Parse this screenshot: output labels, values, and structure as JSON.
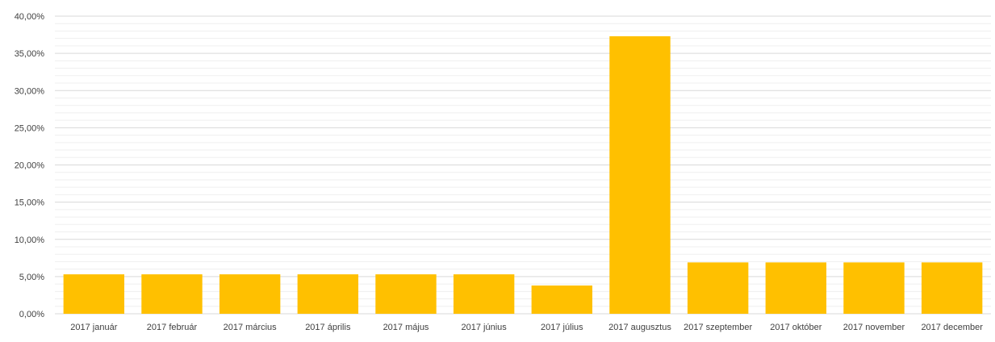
{
  "chart_data": {
    "type": "bar",
    "title": "",
    "xlabel": "",
    "ylabel": "",
    "categories": [
      "2017 január",
      "2017 február",
      "2017 március",
      "2017 április",
      "2017 május",
      "2017 június",
      "2017 július",
      "2017 augusztus",
      "2017 szeptember",
      "2017 október",
      "2017 november",
      "2017 december"
    ],
    "values": [
      5.3,
      5.3,
      5.3,
      5.3,
      5.3,
      5.3,
      3.8,
      37.3,
      6.9,
      6.9,
      6.9,
      6.9
    ],
    "ylim": [
      0,
      40
    ],
    "yticks": [
      0,
      5,
      10,
      15,
      20,
      25,
      30,
      35,
      40
    ],
    "ytick_labels": [
      "0,00%",
      "5,00%",
      "10,00%",
      "15,00%",
      "20,00%",
      "25,00%",
      "30,00%",
      "35,00%",
      "40,00%"
    ],
    "grid": true,
    "minor_grid": true,
    "legend": "none",
    "colors": {
      "bar": "#FFC000",
      "major_grid": "#D9D9D9",
      "minor_grid": "#EFEFEF",
      "text": "#404040"
    }
  }
}
